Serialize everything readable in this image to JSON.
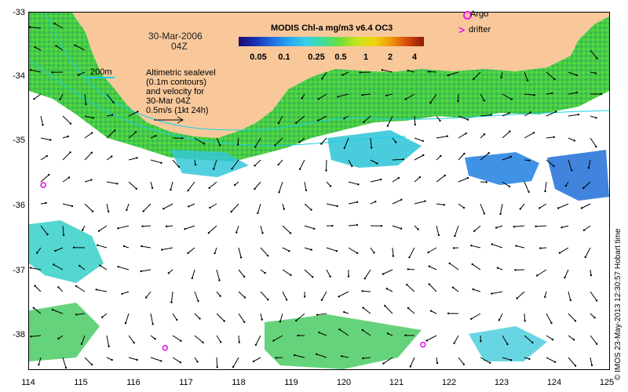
{
  "title": "MODIS Chl-a mg/m3 v6.4 OC3",
  "date": "30-Mar-2006",
  "time": "04Z",
  "colorbar": {
    "ticks": [
      "0.05",
      "0.1",
      "0.25",
      "0.5",
      "1",
      "2",
      "4"
    ],
    "tick_values": [
      0.05,
      0.1,
      0.25,
      0.5,
      1,
      2,
      4
    ]
  },
  "scale_label": "200m",
  "altimetric_note": [
    "Altimetric sealevel",
    "(0.1m contours)",
    "and velocity for",
    "30-Mar 04Z",
    "0.5m/s (1kt 24h)"
  ],
  "legend": {
    "argo": "Argo",
    "drifter": "drifter",
    "drifter_symbol": ">"
  },
  "credit": "© IMOS 23-May-2013 12:30:57 Hobart time",
  "axes": {
    "x_ticks": [
      "114",
      "115",
      "116",
      "117",
      "118",
      "119",
      "120",
      "121",
      "122",
      "123",
      "124",
      "125"
    ],
    "y_ticks": [
      "-33",
      "-34",
      "-35",
      "-36",
      "-37",
      "-38"
    ],
    "lon_range": [
      114,
      125
    ],
    "lat_range": [
      -38.5,
      -33
    ]
  },
  "colors": {
    "land": "#f8c89b",
    "argo": "#e81ae8",
    "contour": "#1ad0e8",
    "ocean": "#ffffff"
  },
  "argo_floats": [
    {
      "lon": 114.27,
      "lat": -35.66
    },
    {
      "lon": 116.58,
      "lat": -38.17
    },
    {
      "lon": 121.47,
      "lat": -38.12
    }
  ]
}
